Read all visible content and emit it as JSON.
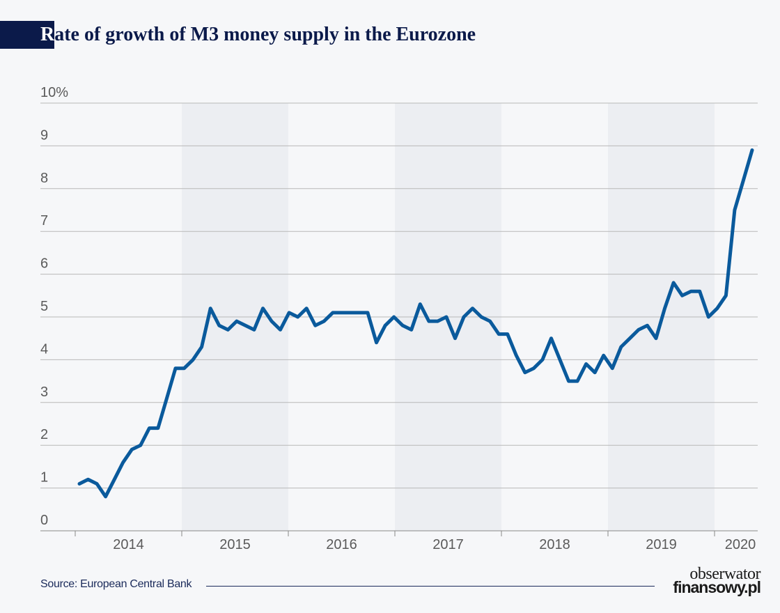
{
  "title_initial": "R",
  "title_rest": "ate of growth of M3 money supply in the Eurozone",
  "source": "Source: European Central Bank",
  "logo": {
    "line1": "obserwator",
    "line2": "finansowy.pl"
  },
  "colors": {
    "line": "#0a5a9c",
    "band": "#eceef2",
    "title": "#0b1a4a"
  },
  "chart_data": {
    "type": "line",
    "title": "Rate of growth of M3 money supply in the Eurozone",
    "ylim": [
      0,
      10
    ],
    "y_ticks": [
      "0",
      "1",
      "2",
      "3",
      "4",
      "5",
      "6",
      "7",
      "8",
      "9",
      "10%"
    ],
    "x_ticks": [
      "2014",
      "2015",
      "2016",
      "2017",
      "2018",
      "2019",
      "2020"
    ],
    "shaded_years": [
      "2015",
      "2017",
      "2019"
    ],
    "grid": true,
    "series": [
      {
        "values": [
          1.1,
          1.2,
          1.1,
          0.8,
          1.2,
          1.6,
          1.9,
          2.0,
          2.4,
          2.4,
          3.1,
          3.8,
          3.8,
          4.0,
          4.3,
          5.2,
          4.8,
          4.7,
          4.9,
          4.8,
          4.7,
          5.2,
          4.9,
          4.7,
          5.1,
          5.0,
          5.2,
          4.8,
          4.9,
          5.1,
          5.1,
          5.1,
          5.1,
          5.1,
          4.4,
          4.8,
          5.0,
          4.8,
          4.7,
          5.3,
          4.9,
          4.9,
          5.0,
          4.5,
          5.0,
          5.2,
          5.0,
          4.9,
          4.6,
          4.6,
          4.1,
          3.7,
          3.8,
          4.0,
          4.5,
          4.0,
          3.5,
          3.5,
          3.9,
          3.7,
          4.1,
          3.8,
          4.3,
          4.5,
          4.7,
          4.8,
          4.5,
          5.2,
          5.8,
          5.5,
          5.6,
          5.6,
          5.0,
          5.2,
          5.5,
          7.5,
          8.2,
          8.9
        ]
      }
    ]
  }
}
